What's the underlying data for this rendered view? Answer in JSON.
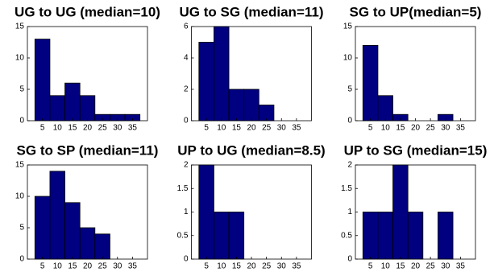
{
  "chart_data": [
    {
      "type": "histogram",
      "title": "UG to UG (median=10)",
      "bins": [
        2.5,
        7.5,
        12.5,
        17.5,
        22.5,
        27.5,
        32.5,
        37.5
      ],
      "values": [
        13,
        4,
        6,
        4,
        1,
        1,
        1
      ],
      "color": "#000080",
      "xlim": [
        0,
        40
      ],
      "xticks": [
        5,
        10,
        15,
        20,
        25,
        30,
        35
      ],
      "ylim": [
        0,
        15
      ],
      "yticks": [
        0,
        5,
        10,
        15
      ]
    },
    {
      "type": "histogram",
      "title": "UG to SG (median=11)",
      "bins": [
        2.5,
        7.5,
        12.5,
        17.5,
        22.5,
        27.5
      ],
      "values": [
        5,
        6,
        2,
        2,
        1
      ],
      "color": "#000080",
      "xlim": [
        0,
        40
      ],
      "xticks": [
        5,
        10,
        15,
        20,
        25,
        30,
        35
      ],
      "ylim": [
        0,
        6
      ],
      "yticks": [
        0,
        2,
        4,
        6
      ]
    },
    {
      "type": "histogram",
      "title": "SG to UP(median=5)",
      "bins": [
        2.5,
        7.5,
        12.5,
        17.5,
        22.5,
        27.5,
        32.5
      ],
      "values": [
        12,
        4,
        1,
        0,
        0,
        1
      ],
      "color": "#000080",
      "xlim": [
        0,
        40
      ],
      "xticks": [
        5,
        10,
        15,
        20,
        25,
        30,
        35
      ],
      "ylim": [
        0,
        15
      ],
      "yticks": [
        0,
        5,
        10,
        15
      ]
    },
    {
      "type": "histogram",
      "title": "SG to SP (median=11)",
      "bins": [
        2.5,
        7.5,
        12.5,
        17.5,
        22.5,
        27.5
      ],
      "values": [
        10,
        14,
        9,
        5,
        4
      ],
      "color": "#000080",
      "xlim": [
        0,
        40
      ],
      "xticks": [
        5,
        10,
        15,
        20,
        25,
        30,
        35
      ],
      "ylim": [
        0,
        15
      ],
      "yticks": [
        0,
        5,
        10,
        15
      ]
    },
    {
      "type": "histogram",
      "title": "UP to UG (median=8.5)",
      "bins": [
        2.5,
        7.5,
        12.5,
        17.5
      ],
      "values": [
        2,
        1,
        1
      ],
      "color": "#000080",
      "xlim": [
        0,
        40
      ],
      "xticks": [
        5,
        10,
        15,
        20,
        25,
        30,
        35
      ],
      "ylim": [
        0,
        2
      ],
      "yticks": [
        0,
        0.5,
        1,
        1.5,
        2
      ]
    },
    {
      "type": "histogram",
      "title": "UP to SG (median=15)",
      "bins": [
        2.5,
        7.5,
        12.5,
        17.5,
        22.5,
        27.5,
        32.5
      ],
      "values": [
        1,
        1,
        2,
        1,
        0,
        1
      ],
      "color": "#000080",
      "xlim": [
        0,
        40
      ],
      "xticks": [
        5,
        10,
        15,
        20,
        25,
        30,
        35
      ],
      "ylim": [
        0,
        2
      ],
      "yticks": [
        0,
        0.5,
        1,
        1.5,
        2
      ]
    }
  ]
}
